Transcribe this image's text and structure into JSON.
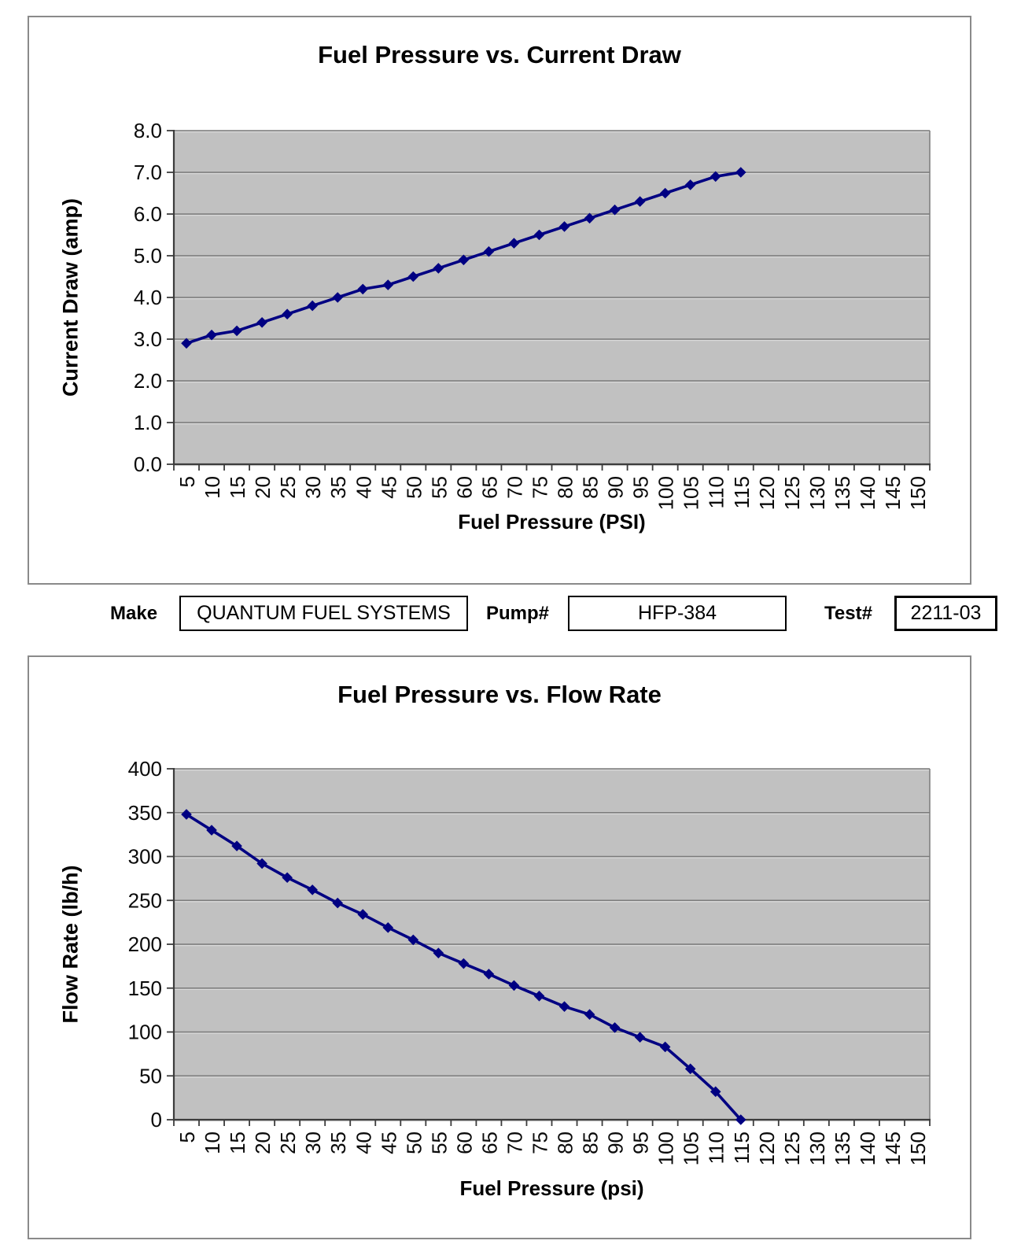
{
  "form": {
    "make_label": "Make",
    "make_value": "QUANTUM FUEL SYSTEMS",
    "pump_label": "Pump#",
    "pump_value": "HFP-384",
    "test_label": "Test#",
    "test_value": "2211-03"
  },
  "chart_data": [
    {
      "type": "line",
      "title": "Fuel Pressure vs. Current Draw",
      "xlabel": "Fuel Pressure (PSI)",
      "ylabel": "Current Draw (amp)",
      "legend": "none",
      "grid": "horizontal",
      "marker": "diamond",
      "line_color": "#000082",
      "plot_bg": "#c1c1c1",
      "ylim": [
        0,
        8
      ],
      "y_tick_labels": [
        "8.0",
        "7.0",
        "6.0",
        "5.0",
        "4.0",
        "3.0",
        "2.0",
        "1.0",
        "0.0"
      ],
      "x_tick_labels": [
        "5",
        "10",
        "15",
        "20",
        "25",
        "30",
        "35",
        "40",
        "45",
        "50",
        "55",
        "60",
        "65",
        "70",
        "75",
        "80",
        "85",
        "90",
        "95",
        "100",
        "105",
        "110",
        "115",
        "120",
        "125",
        "130",
        "135",
        "140",
        "145",
        "150"
      ],
      "x": [
        5,
        10,
        15,
        20,
        25,
        30,
        35,
        40,
        45,
        50,
        55,
        60,
        65,
        70,
        75,
        80,
        85,
        90,
        95,
        100,
        105,
        110,
        115
      ],
      "y": [
        2.9,
        3.1,
        3.2,
        3.4,
        3.6,
        3.8,
        4.0,
        4.2,
        4.3,
        4.5,
        4.7,
        4.9,
        5.1,
        5.3,
        5.5,
        5.7,
        5.9,
        6.1,
        6.3,
        6.5,
        6.7,
        6.9,
        7.0
      ]
    },
    {
      "type": "line",
      "title": "Fuel Pressure vs. Flow Rate",
      "xlabel": "Fuel Pressure (psi)",
      "ylabel": "Flow Rate (lb/h)",
      "legend": "none",
      "grid": "horizontal",
      "marker": "diamond",
      "line_color": "#000082",
      "plot_bg": "#c1c1c1",
      "ylim": [
        0,
        400
      ],
      "y_tick_labels": [
        "400",
        "350",
        "300",
        "250",
        "200",
        "150",
        "100",
        "50",
        "0"
      ],
      "x_tick_labels": [
        "5",
        "10",
        "15",
        "20",
        "25",
        "30",
        "35",
        "40",
        "45",
        "50",
        "55",
        "60",
        "65",
        "70",
        "75",
        "80",
        "85",
        "90",
        "95",
        "100",
        "105",
        "110",
        "115",
        "120",
        "125",
        "130",
        "135",
        "140",
        "145",
        "150"
      ],
      "x": [
        5,
        10,
        15,
        20,
        25,
        30,
        35,
        40,
        45,
        50,
        55,
        60,
        65,
        70,
        75,
        80,
        85,
        90,
        95,
        100,
        105,
        110,
        115
      ],
      "y": [
        348,
        330,
        312,
        292,
        276,
        262,
        247,
        234,
        219,
        205,
        190,
        178,
        166,
        153,
        141,
        129,
        120,
        105,
        94,
        83,
        58,
        32,
        0
      ]
    }
  ]
}
